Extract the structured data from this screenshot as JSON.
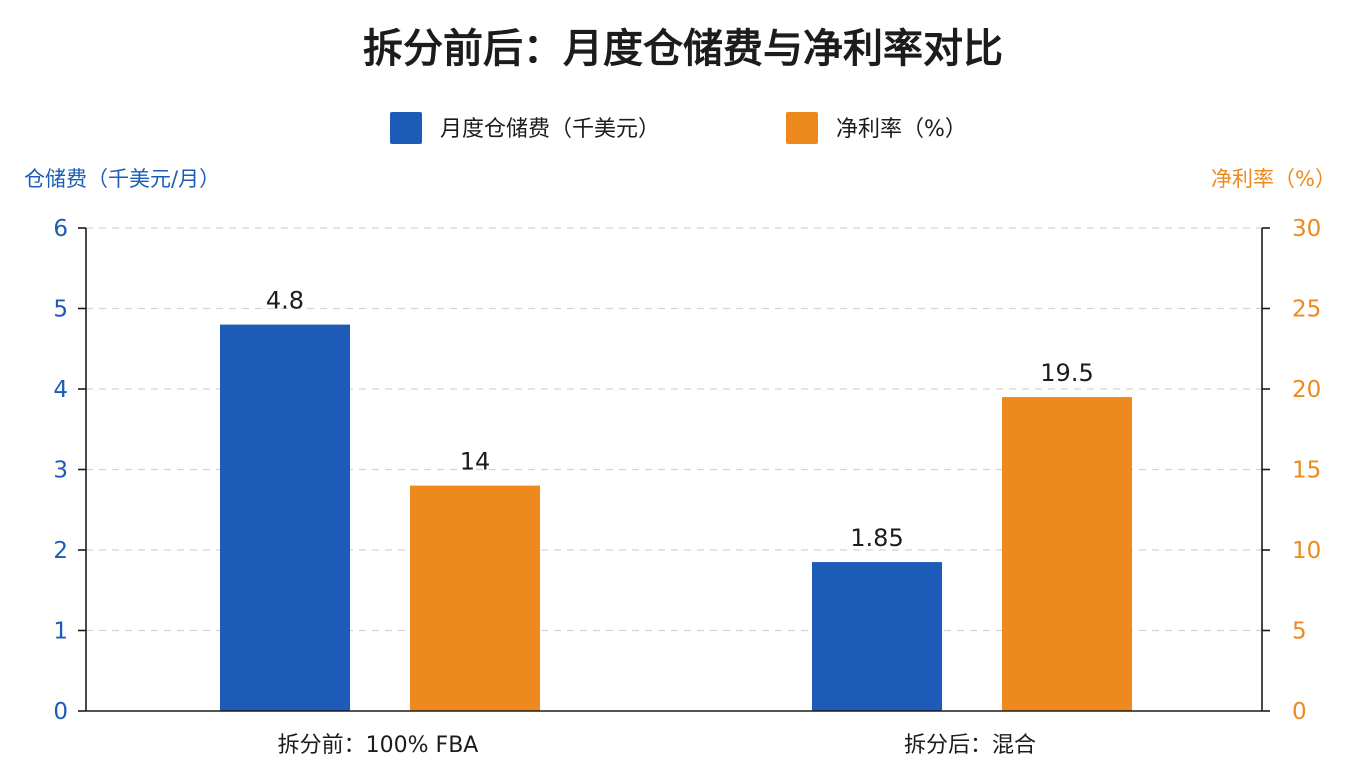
{
  "chart_data": {
    "type": "bar",
    "title": "拆分前后：月度仓储费与净利率对比",
    "categories": [
      "拆分前：100% FBA",
      "拆分后：混合"
    ],
    "series": [
      {
        "name": "月度仓储费（千美元）",
        "values": [
          4.8,
          1.85
        ],
        "value_labels": [
          "4.8",
          "1.85"
        ],
        "color": "#1c5cb8",
        "axis": "left"
      },
      {
        "name": "净利率（%）",
        "values": [
          14,
          19.5
        ],
        "value_labels": [
          "14",
          "19.5"
        ],
        "color": "#ee8a1d",
        "axis": "right"
      }
    ],
    "y_left": {
      "label": "仓储费（千美元/月）",
      "range": [
        0,
        6
      ],
      "ticks": [
        "0",
        "1",
        "2",
        "3",
        "4",
        "5",
        "6"
      ],
      "color": "#1c5cb8"
    },
    "y_right": {
      "label": "净利率（%）",
      "range": [
        0,
        30
      ],
      "ticks": [
        "0",
        "5",
        "10",
        "15",
        "20",
        "25",
        "30"
      ],
      "color": "#ee8a1d"
    },
    "grid": true,
    "legend_position": "top-center"
  }
}
